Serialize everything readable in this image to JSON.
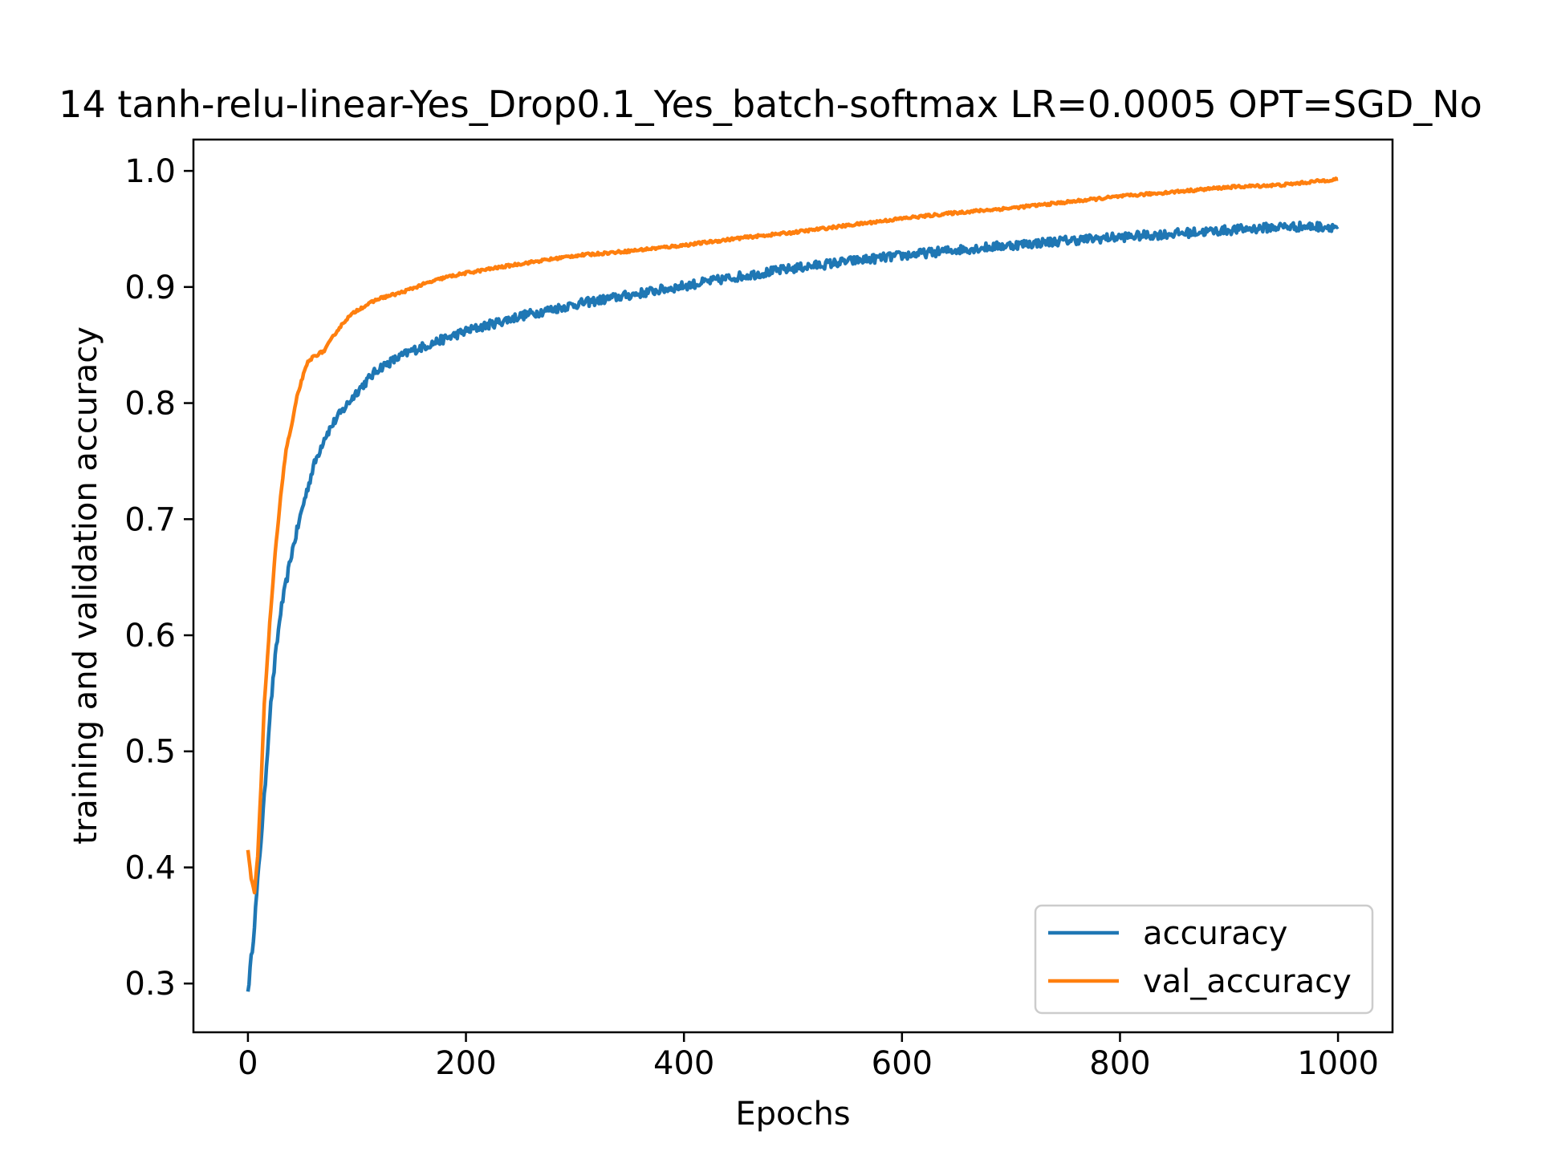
{
  "chart_data": {
    "type": "line",
    "title": "14 tanh-relu-linear-Yes_Drop0.1_Yes_batch-softmax LR=0.0005 OPT=SGD_No",
    "xlabel": "Epochs",
    "ylabel": "training and validation accuracy",
    "xlim": [
      -50,
      1050
    ],
    "ylim": [
      0.258,
      1.027
    ],
    "xticks": [
      0,
      200,
      400,
      600,
      800,
      1000
    ],
    "xtick_labels": [
      "0",
      "200",
      "400",
      "600",
      "800",
      "1000"
    ],
    "yticks": [
      0.3,
      0.4,
      0.5,
      0.6,
      0.7,
      0.8,
      0.9,
      1.0
    ],
    "ytick_labels": [
      "0.3",
      "0.4",
      "0.5",
      "0.6",
      "0.7",
      "0.8",
      "0.9",
      "1.0"
    ],
    "grid": false,
    "legend": {
      "position": "lower-right",
      "entries": [
        "accuracy",
        "val_accuracy"
      ]
    },
    "series": [
      {
        "name": "accuracy",
        "color": "#1f77b4",
        "noise": 0.004,
        "x": [
          0,
          5,
          10,
          15,
          20,
          25,
          30,
          40,
          50,
          60,
          70,
          80,
          100,
          120,
          150,
          200,
          250,
          300,
          350,
          400,
          450,
          500,
          550,
          600,
          650,
          700,
          750,
          800,
          850,
          900,
          950,
          1000
        ],
        "y": [
          0.293,
          0.34,
          0.4,
          0.46,
          0.53,
          0.58,
          0.62,
          0.67,
          0.71,
          0.745,
          0.77,
          0.785,
          0.81,
          0.83,
          0.845,
          0.862,
          0.875,
          0.885,
          0.893,
          0.901,
          0.909,
          0.916,
          0.922,
          0.927,
          0.932,
          0.936,
          0.94,
          0.943,
          0.946,
          0.949,
          0.952,
          0.952
        ]
      },
      {
        "name": "val_accuracy",
        "color": "#ff7f0e",
        "noise": 0.0012,
        "x": [
          0,
          3,
          6,
          9,
          12,
          15,
          20,
          25,
          30,
          35,
          40,
          45,
          50,
          55,
          60,
          70,
          80,
          90,
          100,
          120,
          140,
          160,
          180,
          200,
          250,
          300,
          350,
          400,
          450,
          500,
          550,
          600,
          650,
          700,
          750,
          800,
          850,
          900,
          950,
          1000
        ],
        "y": [
          0.415,
          0.39,
          0.378,
          0.41,
          0.47,
          0.54,
          0.61,
          0.67,
          0.72,
          0.76,
          0.78,
          0.805,
          0.822,
          0.835,
          0.84,
          0.845,
          0.86,
          0.872,
          0.88,
          0.89,
          0.895,
          0.902,
          0.908,
          0.912,
          0.92,
          0.927,
          0.931,
          0.936,
          0.942,
          0.947,
          0.953,
          0.959,
          0.964,
          0.968,
          0.973,
          0.978,
          0.982,
          0.986,
          0.988,
          0.993
        ]
      }
    ]
  }
}
